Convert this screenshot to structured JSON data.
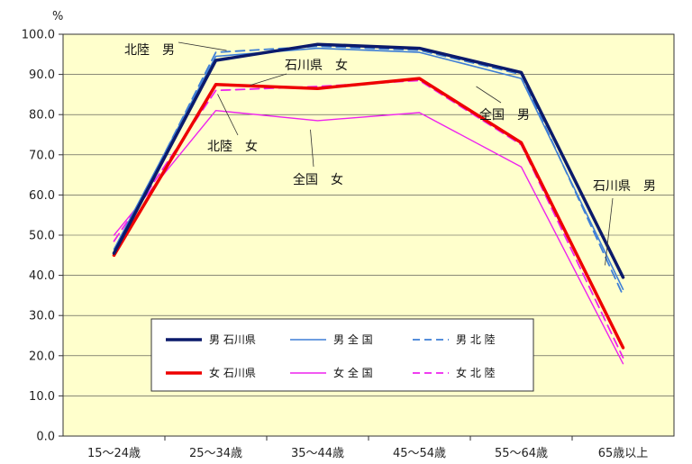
{
  "chart_data": {
    "type": "line",
    "y_unit": "%",
    "ylim": [
      0,
      100
    ],
    "y_ticks": [
      "0.0",
      "10.0",
      "20.0",
      "30.0",
      "40.0",
      "50.0",
      "60.0",
      "70.0",
      "80.0",
      "90.0",
      "100.0"
    ],
    "categories": [
      "15～24歳",
      "25～34歳",
      "35～44歳",
      "45～54歳",
      "55～64歳",
      "65歳以上"
    ],
    "grid": true,
    "background": "#ffffcc",
    "legend_position": "bottom-center",
    "series": [
      {
        "name": "男 石川県",
        "values": [
          45.5,
          93.5,
          97.5,
          96.5,
          90.5,
          39.5
        ],
        "color": "#0b1a6b",
        "width": 3.5,
        "dash": false
      },
      {
        "name": "男 全 国",
        "values": [
          46.5,
          94.5,
          96.5,
          95.5,
          89.0,
          36.5
        ],
        "color": "#3f7fd6",
        "width": 1.6,
        "dash": false
      },
      {
        "name": "男 北 陸",
        "values": [
          45.5,
          95.5,
          97.0,
          96.0,
          90.0,
          35.0
        ],
        "color": "#3f7fd6",
        "width": 1.8,
        "dash": true
      },
      {
        "name": "女 石川県",
        "values": [
          45.0,
          87.5,
          86.5,
          89.0,
          73.0,
          22.0
        ],
        "color": "#ee0000",
        "width": 3.5,
        "dash": false
      },
      {
        "name": "女 全 国",
        "values": [
          50.0,
          81.0,
          78.5,
          80.5,
          67.0,
          18.0
        ],
        "color": "#ee22ee",
        "width": 1.4,
        "dash": false
      },
      {
        "name": "女 北 陸",
        "values": [
          48.5,
          86.0,
          87.0,
          88.5,
          72.5,
          19.5
        ],
        "color": "#ee22ee",
        "width": 1.8,
        "dash": true
      }
    ],
    "annotations": [
      {
        "text": "北陸　男",
        "series": "男 北 陸",
        "at": "25～34歳"
      },
      {
        "text": "石川県　女",
        "series": "女 石川県",
        "at": "25～34歳"
      },
      {
        "text": "北陸　女",
        "series": "女 北 陸",
        "at": "25～34歳"
      },
      {
        "text": "全国　女",
        "series": "女 全 国",
        "at": "35～44歳"
      },
      {
        "text": "全国　男",
        "series": "男 全 国",
        "at": "55～64歳"
      },
      {
        "text": "石川県　男",
        "series": "男 石川県",
        "at": "65歳以上"
      }
    ]
  }
}
